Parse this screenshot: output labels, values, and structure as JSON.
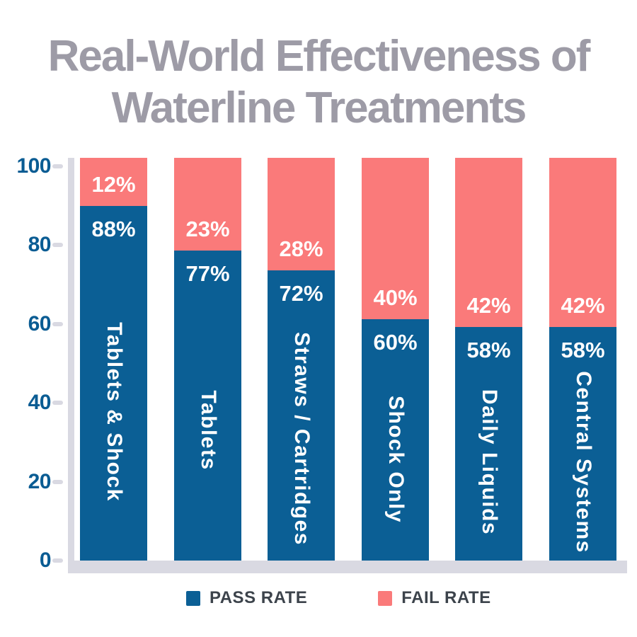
{
  "title": {
    "line1": "Real-World Effectiveness of",
    "line2": "Waterline Treatments"
  },
  "chart_data": {
    "type": "bar",
    "stacked": true,
    "title": "Real-World Effectiveness of Waterline Treatments",
    "categories": [
      "Tablets & Shock",
      "Tablets",
      "Straws / Cartridges",
      "Shock Only",
      "Daily Liquids",
      "Central Systems"
    ],
    "series": [
      {
        "name": "PASS RATE",
        "color": "#0b5f95",
        "values": [
          88,
          77,
          72,
          60,
          58,
          58
        ]
      },
      {
        "name": "FAIL RATE",
        "color": "#fa7a7a",
        "values": [
          12,
          23,
          28,
          40,
          42,
          42
        ]
      }
    ],
    "value_suffix": "%",
    "xlabel": "",
    "ylabel": "",
    "ylim": [
      0,
      100
    ],
    "yticks": [
      0,
      20,
      40,
      60,
      80,
      100
    ],
    "grid": false,
    "legend_position": "bottom",
    "bar_label_color": "#ffffff",
    "category_label_orientation": "vertical"
  },
  "legend": {
    "items": [
      {
        "label": "PASS RATE",
        "color": "#0b5f95"
      },
      {
        "label": "FAIL RATE",
        "color": "#fa7a7a"
      }
    ]
  },
  "colors": {
    "title_text": "#9d9ba6",
    "axis": "#d9d9e2",
    "tick_label": "#0a5c93",
    "legend_text": "#3c434b",
    "background": "#ffffff"
  }
}
